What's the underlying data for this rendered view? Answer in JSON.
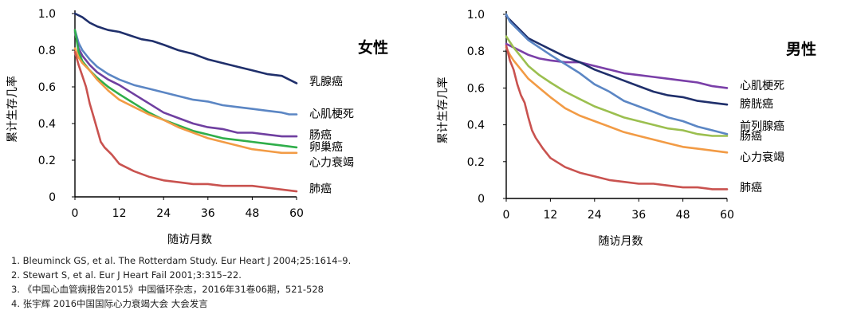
{
  "chart_data": [
    {
      "type": "line",
      "title": "女性",
      "xlabel": "随访月数",
      "ylabel": "累计生存几率",
      "xlim": [
        0,
        60
      ],
      "ylim": [
        0,
        1.0
      ],
      "xticks": [
        0,
        12,
        24,
        36,
        48,
        60
      ],
      "yticks": [
        0,
        0.2,
        0.4,
        0.6,
        0.8,
        1.0
      ],
      "ytick_labels": [
        "0",
        "0.2",
        "0.4",
        "0.6",
        "0.8",
        "1.0"
      ],
      "grid": false,
      "series": [
        {
          "name": "乳腺癌",
          "color": "#1f2f6b",
          "label_y": 0.63,
          "points": [
            [
              0,
              1.0
            ],
            [
              2,
              0.98
            ],
            [
              4,
              0.95
            ],
            [
              6,
              0.93
            ],
            [
              9,
              0.91
            ],
            [
              12,
              0.9
            ],
            [
              15,
              0.88
            ],
            [
              18,
              0.86
            ],
            [
              21,
              0.85
            ],
            [
              24,
              0.83
            ],
            [
              28,
              0.8
            ],
            [
              32,
              0.78
            ],
            [
              36,
              0.75
            ],
            [
              40,
              0.73
            ],
            [
              44,
              0.71
            ],
            [
              48,
              0.69
            ],
            [
              52,
              0.67
            ],
            [
              56,
              0.66
            ],
            [
              58,
              0.64
            ],
            [
              60,
              0.62
            ]
          ]
        },
        {
          "name": "心肌梗死",
          "color": "#5b86c4",
          "label_y": 0.455,
          "points": [
            [
              0,
              0.91
            ],
            [
              1,
              0.84
            ],
            [
              2,
              0.8
            ],
            [
              4,
              0.75
            ],
            [
              6,
              0.71
            ],
            [
              9,
              0.67
            ],
            [
              12,
              0.64
            ],
            [
              16,
              0.61
            ],
            [
              20,
              0.59
            ],
            [
              24,
              0.57
            ],
            [
              28,
              0.55
            ],
            [
              32,
              0.53
            ],
            [
              36,
              0.52
            ],
            [
              40,
              0.5
            ],
            [
              44,
              0.49
            ],
            [
              48,
              0.48
            ],
            [
              52,
              0.47
            ],
            [
              56,
              0.46
            ],
            [
              58,
              0.45
            ],
            [
              60,
              0.45
            ]
          ]
        },
        {
          "name": "肠癌",
          "color": "#6f3fa0",
          "label_y": 0.34,
          "points": [
            [
              0,
              0.9
            ],
            [
              1,
              0.81
            ],
            [
              2,
              0.77
            ],
            [
              4,
              0.72
            ],
            [
              6,
              0.68
            ],
            [
              9,
              0.64
            ],
            [
              12,
              0.61
            ],
            [
              16,
              0.56
            ],
            [
              20,
              0.51
            ],
            [
              24,
              0.46
            ],
            [
              28,
              0.43
            ],
            [
              32,
              0.4
            ],
            [
              36,
              0.38
            ],
            [
              40,
              0.37
            ],
            [
              44,
              0.35
            ],
            [
              48,
              0.35
            ],
            [
              52,
              0.34
            ],
            [
              56,
              0.33
            ],
            [
              60,
              0.33
            ]
          ]
        },
        {
          "name": "卵巢癌",
          "color": "#2fae4a",
          "label_y": 0.275,
          "points": [
            [
              0,
              0.91
            ],
            [
              1,
              0.79
            ],
            [
              2,
              0.74
            ],
            [
              4,
              0.69
            ],
            [
              6,
              0.65
            ],
            [
              9,
              0.6
            ],
            [
              12,
              0.56
            ],
            [
              16,
              0.51
            ],
            [
              20,
              0.46
            ],
            [
              24,
              0.42
            ],
            [
              28,
              0.39
            ],
            [
              32,
              0.36
            ],
            [
              36,
              0.34
            ],
            [
              40,
              0.32
            ],
            [
              44,
              0.31
            ],
            [
              48,
              0.3
            ],
            [
              52,
              0.29
            ],
            [
              56,
              0.28
            ],
            [
              60,
              0.27
            ]
          ]
        },
        {
          "name": "心力衰竭",
          "color": "#f29b45",
          "label_y": 0.19,
          "points": [
            [
              0,
              0.81
            ],
            [
              1,
              0.76
            ],
            [
              2,
              0.73
            ],
            [
              4,
              0.69
            ],
            [
              6,
              0.64
            ],
            [
              9,
              0.58
            ],
            [
              12,
              0.53
            ],
            [
              16,
              0.49
            ],
            [
              20,
              0.45
            ],
            [
              24,
              0.42
            ],
            [
              28,
              0.38
            ],
            [
              32,
              0.35
            ],
            [
              36,
              0.32
            ],
            [
              40,
              0.3
            ],
            [
              44,
              0.28
            ],
            [
              48,
              0.26
            ],
            [
              52,
              0.25
            ],
            [
              56,
              0.24
            ],
            [
              60,
              0.24
            ]
          ]
        },
        {
          "name": "肺癌",
          "color": "#c9524f",
          "label_y": 0.045,
          "points": [
            [
              0,
              0.79
            ],
            [
              1,
              0.72
            ],
            [
              2,
              0.66
            ],
            [
              3,
              0.6
            ],
            [
              4,
              0.51
            ],
            [
              5,
              0.44
            ],
            [
              6,
              0.37
            ],
            [
              7,
              0.3
            ],
            [
              8,
              0.27
            ],
            [
              10,
              0.23
            ],
            [
              12,
              0.18
            ],
            [
              16,
              0.14
            ],
            [
              20,
              0.11
            ],
            [
              24,
              0.09
            ],
            [
              28,
              0.08
            ],
            [
              32,
              0.07
            ],
            [
              36,
              0.07
            ],
            [
              40,
              0.06
            ],
            [
              44,
              0.06
            ],
            [
              48,
              0.06
            ],
            [
              52,
              0.05
            ],
            [
              56,
              0.04
            ],
            [
              60,
              0.03
            ]
          ]
        }
      ]
    },
    {
      "type": "line",
      "title": "男性",
      "xlabel": "随访月数",
      "ylabel": "累计生存几率",
      "xlim": [
        0,
        60
      ],
      "ylim": [
        0,
        1.0
      ],
      "xticks": [
        0,
        12,
        24,
        36,
        48,
        60
      ],
      "yticks": [
        0,
        0.2,
        0.4,
        0.6,
        0.8,
        1.0
      ],
      "ytick_labels": [
        "0",
        "0.2",
        "0.4",
        "0.6",
        "0.8",
        "1.0"
      ],
      "grid": false,
      "series": [
        {
          "name": "心肌梗死",
          "color": "#7a3fa8",
          "label_y": 0.615,
          "points": [
            [
              0,
              0.84
            ],
            [
              2,
              0.82
            ],
            [
              4,
              0.8
            ],
            [
              6,
              0.78
            ],
            [
              9,
              0.76
            ],
            [
              12,
              0.75
            ],
            [
              16,
              0.74
            ],
            [
              20,
              0.74
            ],
            [
              24,
              0.72
            ],
            [
              28,
              0.7
            ],
            [
              32,
              0.68
            ],
            [
              36,
              0.67
            ],
            [
              40,
              0.66
            ],
            [
              44,
              0.65
            ],
            [
              48,
              0.64
            ],
            [
              52,
              0.63
            ],
            [
              56,
              0.61
            ],
            [
              60,
              0.6
            ]
          ]
        },
        {
          "name": "膀胱癌",
          "color": "#1f2f6b",
          "label_y": 0.515,
          "points": [
            [
              0,
              0.99
            ],
            [
              2,
              0.95
            ],
            [
              4,
              0.91
            ],
            [
              6,
              0.87
            ],
            [
              9,
              0.84
            ],
            [
              12,
              0.81
            ],
            [
              16,
              0.77
            ],
            [
              20,
              0.74
            ],
            [
              24,
              0.7
            ],
            [
              28,
              0.67
            ],
            [
              32,
              0.64
            ],
            [
              36,
              0.61
            ],
            [
              40,
              0.58
            ],
            [
              44,
              0.56
            ],
            [
              48,
              0.55
            ],
            [
              52,
              0.53
            ],
            [
              56,
              0.52
            ],
            [
              60,
              0.51
            ]
          ]
        },
        {
          "name": "前列腺癌",
          "color": "#5b86c4",
          "label_y": 0.395,
          "points": [
            [
              0,
              1.0
            ],
            [
              1,
              0.96
            ],
            [
              2,
              0.94
            ],
            [
              4,
              0.9
            ],
            [
              6,
              0.86
            ],
            [
              9,
              0.82
            ],
            [
              12,
              0.78
            ],
            [
              16,
              0.73
            ],
            [
              20,
              0.68
            ],
            [
              24,
              0.62
            ],
            [
              28,
              0.58
            ],
            [
              32,
              0.53
            ],
            [
              36,
              0.5
            ],
            [
              40,
              0.47
            ],
            [
              44,
              0.44
            ],
            [
              48,
              0.42
            ],
            [
              52,
              0.39
            ],
            [
              56,
              0.37
            ],
            [
              60,
              0.35
            ]
          ]
        },
        {
          "name": "肠癌",
          "color": "#9bbf4f",
          "label_y": 0.34,
          "points": [
            [
              0,
              0.88
            ],
            [
              1,
              0.85
            ],
            [
              2,
              0.82
            ],
            [
              4,
              0.77
            ],
            [
              6,
              0.72
            ],
            [
              9,
              0.67
            ],
            [
              12,
              0.63
            ],
            [
              16,
              0.58
            ],
            [
              20,
              0.54
            ],
            [
              24,
              0.5
            ],
            [
              28,
              0.47
            ],
            [
              32,
              0.44
            ],
            [
              36,
              0.42
            ],
            [
              40,
              0.4
            ],
            [
              44,
              0.38
            ],
            [
              48,
              0.37
            ],
            [
              52,
              0.35
            ],
            [
              56,
              0.34
            ],
            [
              60,
              0.34
            ]
          ]
        },
        {
          "name": "心力衰竭",
          "color": "#f29b45",
          "label_y": 0.225,
          "points": [
            [
              0,
              0.82
            ],
            [
              1,
              0.78
            ],
            [
              2,
              0.75
            ],
            [
              4,
              0.7
            ],
            [
              6,
              0.65
            ],
            [
              9,
              0.6
            ],
            [
              12,
              0.55
            ],
            [
              16,
              0.49
            ],
            [
              20,
              0.45
            ],
            [
              24,
              0.42
            ],
            [
              28,
              0.39
            ],
            [
              32,
              0.36
            ],
            [
              36,
              0.34
            ],
            [
              40,
              0.32
            ],
            [
              44,
              0.3
            ],
            [
              48,
              0.28
            ],
            [
              52,
              0.27
            ],
            [
              56,
              0.26
            ],
            [
              60,
              0.25
            ]
          ]
        },
        {
          "name": "肺癌",
          "color": "#c9524f",
          "label_y": 0.06,
          "points": [
            [
              0,
              0.83
            ],
            [
              1,
              0.75
            ],
            [
              2,
              0.7
            ],
            [
              3,
              0.62
            ],
            [
              4,
              0.56
            ],
            [
              5,
              0.52
            ],
            [
              6,
              0.44
            ],
            [
              7,
              0.37
            ],
            [
              8,
              0.33
            ],
            [
              10,
              0.27
            ],
            [
              12,
              0.22
            ],
            [
              16,
              0.17
            ],
            [
              20,
              0.14
            ],
            [
              24,
              0.12
            ],
            [
              28,
              0.1
            ],
            [
              32,
              0.09
            ],
            [
              36,
              0.08
            ],
            [
              40,
              0.08
            ],
            [
              44,
              0.07
            ],
            [
              48,
              0.06
            ],
            [
              52,
              0.06
            ],
            [
              56,
              0.05
            ],
            [
              60,
              0.05
            ]
          ]
        }
      ]
    }
  ],
  "references": [
    "1.  Bleuminck GS, et al. The Rotterdam Study. Eur Heart J 2004;25:1614–9.",
    "2.  Stewart S, et al. Eur J Heart Fail 2001;3:315–22.",
    "3.  《中国心血管病报告2015》中国循环杂志，2016年31卷06期，521-528",
    "4.  张宇辉 2016中国国际心力衰竭大会 大会发言"
  ]
}
